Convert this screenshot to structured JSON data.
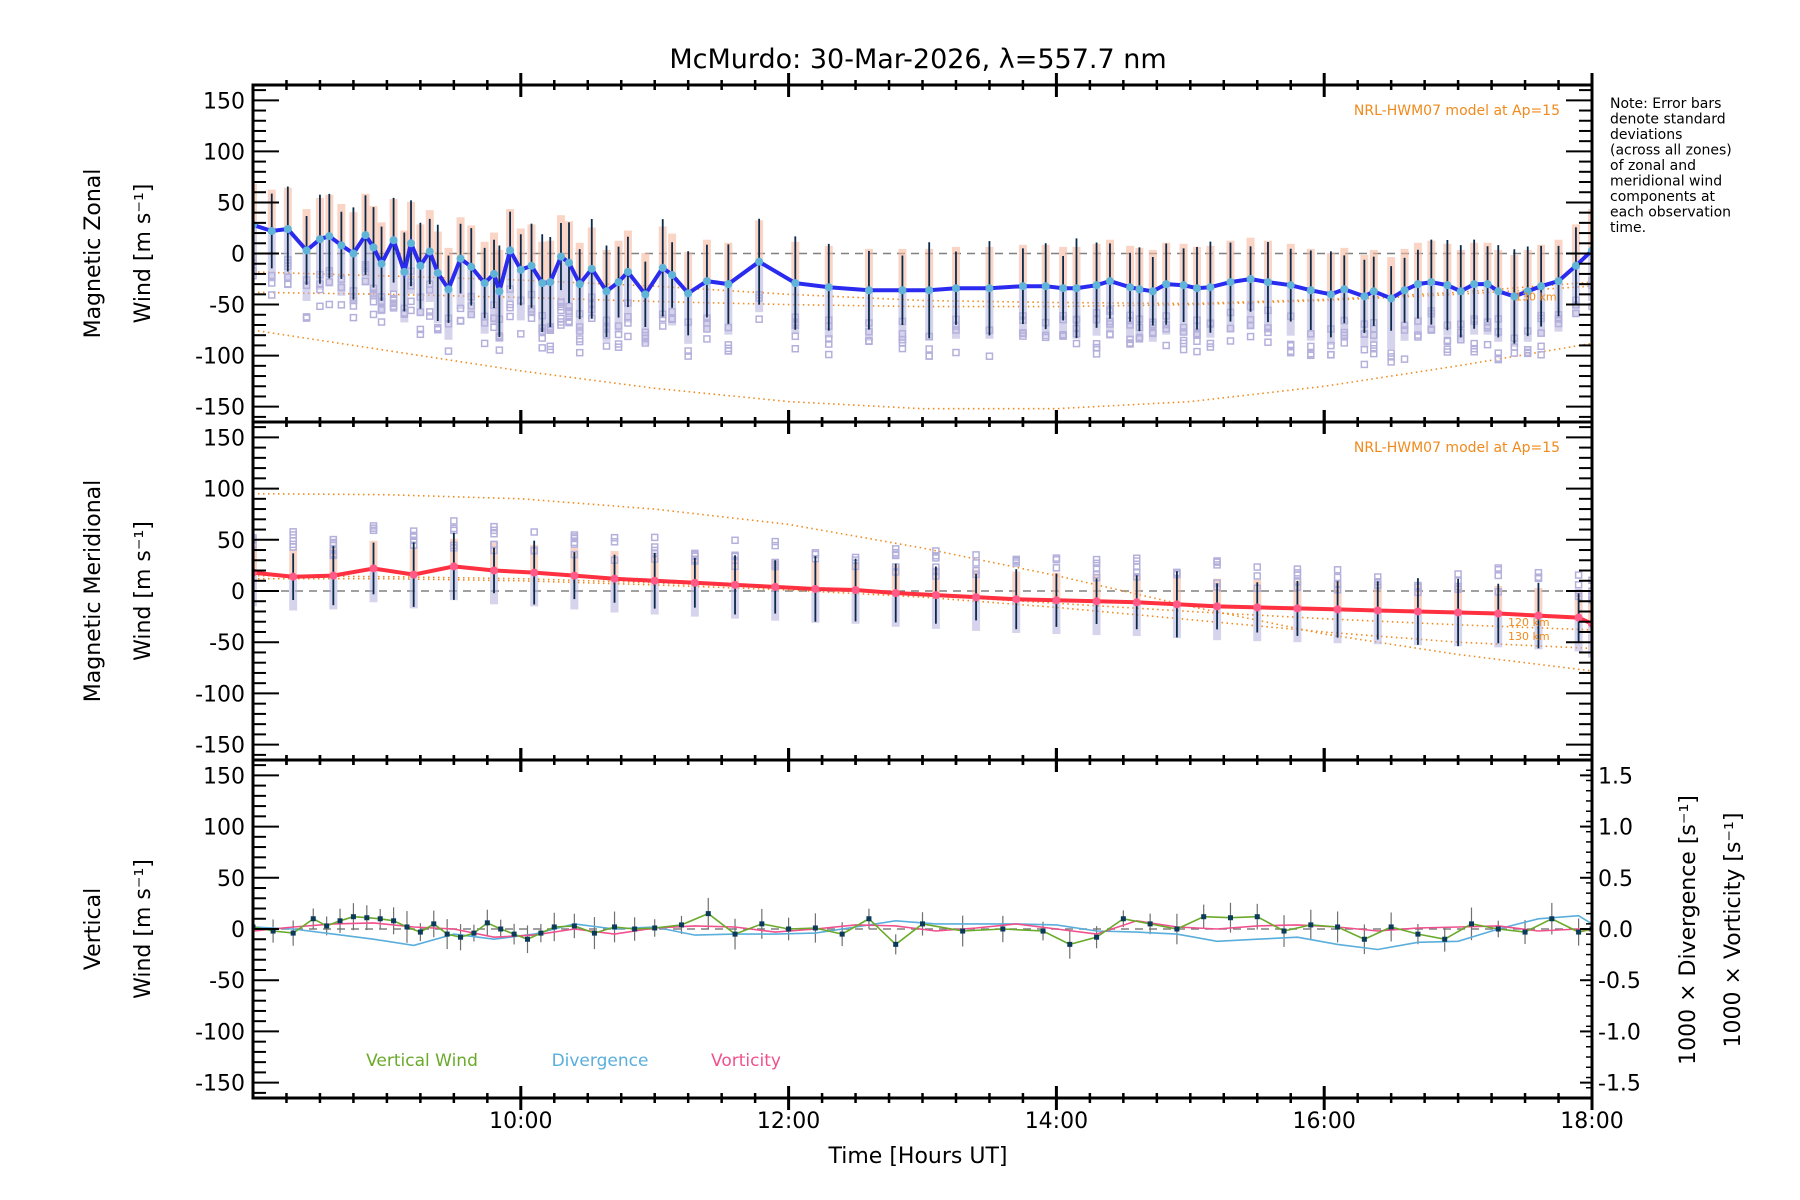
{
  "title": "McMurdo: 30-Mar-2026, λ=557.7 nm",
  "note_lines": [
    "Note: Error bars",
    "denote standard",
    "deviations",
    "(across all zones)",
    "of zonal and",
    "meridional wind",
    "components at",
    "each observation",
    "time."
  ],
  "colors": {
    "zonal_line": "#2b2bf0",
    "zonal_marker": "#5fb4d8",
    "meridional_line": "#ff3040",
    "meridional_marker": "#ff5a88",
    "model": "#f08a1c",
    "zone_scatter": "#b4b0dc",
    "zone_warm": "#f7b9a0",
    "errorbar": "#0b2a4a",
    "vertical": "#6aaa2a",
    "divergence": "#5aaedc",
    "vorticity": "#f0508c",
    "vertical_marker": "#0b3a5a",
    "zero_line": "#808080"
  },
  "chart_data": [
    {
      "type": "line",
      "panel": "zonal",
      "ylabel_line1": "Magnetic Zonal",
      "ylabel_line2": "Wind [m s⁻¹]",
      "ylim": [
        -165,
        165
      ],
      "yticks": [
        150,
        100,
        50,
        0,
        -50,
        -100,
        -150
      ],
      "xlim": [
        8.0,
        18.0
      ],
      "model_label": "NRL-HWM07 model at Ap=15",
      "model_km_label": "130 km",
      "series": [
        {
          "name": "Zonal wind",
          "x": [
            8.0,
            8.14,
            8.26,
            8.4,
            8.5,
            8.57,
            8.66,
            8.75,
            8.84,
            8.9,
            8.96,
            9.05,
            9.13,
            9.18,
            9.25,
            9.32,
            9.38,
            9.46,
            9.55,
            9.63,
            9.73,
            9.8,
            9.84,
            9.92,
            10.0,
            10.08,
            10.16,
            10.22,
            10.3,
            10.36,
            10.44,
            10.53,
            10.64,
            10.73,
            10.8,
            10.93,
            11.06,
            11.13,
            11.25,
            11.39,
            11.55,
            11.78,
            12.05,
            12.3,
            12.6,
            12.85,
            13.05,
            13.25,
            13.5,
            13.75,
            13.92,
            14.05,
            14.15,
            14.3,
            14.4,
            14.55,
            14.62,
            14.72,
            14.82,
            14.95,
            15.05,
            15.15,
            15.3,
            15.45,
            15.58,
            15.75,
            15.9,
            16.05,
            16.15,
            16.3,
            16.37,
            16.5,
            16.6,
            16.7,
            16.8,
            16.92,
            17.02,
            17.12,
            17.22,
            17.3,
            17.42,
            17.52,
            17.62,
            17.75,
            17.88,
            18.0
          ],
          "y": [
            28,
            22,
            24,
            3,
            14,
            17,
            8,
            0,
            18,
            6,
            -10,
            13,
            -18,
            10,
            -12,
            2,
            -19,
            -35,
            -5,
            -13,
            -29,
            -20,
            -37,
            3,
            -16,
            -12,
            -29,
            -28,
            -3,
            -9,
            -30,
            -15,
            -37,
            -28,
            -18,
            -40,
            -14,
            -21,
            -39,
            -27,
            -30,
            -8,
            -29,
            -33,
            -36,
            -36,
            -36,
            -34,
            -34,
            -32,
            -32,
            -34,
            -34,
            -31,
            -27,
            -33,
            -35,
            -37,
            -30,
            -31,
            -34,
            -33,
            -28,
            -25,
            -28,
            -31,
            -36,
            -40,
            -35,
            -42,
            -37,
            -44,
            -36,
            -30,
            -28,
            -31,
            -37,
            -30,
            -30,
            -37,
            -42,
            -37,
            -32,
            -27,
            -12,
            3
          ]
        },
        {
          "name": "Model 130 km (upper)",
          "x": [
            8.0,
            9.0,
            10.0,
            11.0,
            12.0,
            13.0,
            14.0,
            15.0,
            16.0,
            17.0,
            18.0
          ],
          "y": [
            -18,
            -22,
            -26,
            -32,
            -40,
            -46,
            -48,
            -49,
            -45,
            -38,
            -28
          ]
        },
        {
          "name": "Model (middle)",
          "x": [
            8.0,
            9.0,
            10.0,
            11.0,
            12.0,
            13.0,
            14.0,
            15.0,
            16.0,
            17.0,
            18.0
          ],
          "y": [
            -38,
            -40,
            -43,
            -47,
            -50,
            -52,
            -52,
            -50,
            -46,
            -40,
            -32
          ]
        },
        {
          "name": "Model (lower)",
          "x": [
            8.0,
            9.0,
            10.0,
            11.0,
            12.0,
            13.0,
            14.0,
            15.0,
            16.0,
            17.0,
            18.0
          ],
          "y": [
            -75,
            -95,
            -115,
            -132,
            -145,
            -152,
            -152,
            -145,
            -130,
            -110,
            -88
          ]
        }
      ]
    },
    {
      "type": "line",
      "panel": "meridional",
      "ylabel_line1": "Magnetic Meridional",
      "ylabel_line2": "Wind [m s⁻¹]",
      "ylim": [
        -165,
        165
      ],
      "yticks": [
        150,
        100,
        50,
        0,
        -50,
        -100,
        -150
      ],
      "xlim": [
        8.0,
        18.0
      ],
      "model_label": "NRL-HWM07 model at Ap=15",
      "model_km_labels": [
        "120 km",
        "130 km"
      ],
      "series": [
        {
          "name": "Meridional wind",
          "x": [
            8.0,
            8.3,
            8.6,
            8.9,
            9.2,
            9.5,
            9.8,
            10.1,
            10.4,
            10.7,
            11.0,
            11.3,
            11.6,
            11.9,
            12.2,
            12.5,
            12.8,
            13.1,
            13.4,
            13.7,
            14.0,
            14.3,
            14.6,
            14.9,
            15.2,
            15.5,
            15.8,
            16.1,
            16.4,
            16.7,
            17.0,
            17.3,
            17.6,
            17.9,
            18.0
          ],
          "y": [
            18,
            14,
            15,
            22,
            16,
            24,
            20,
            18,
            15,
            12,
            10,
            8,
            6,
            4,
            2,
            1,
            -2,
            -4,
            -6,
            -8,
            -9,
            -10,
            -11,
            -13,
            -15,
            -16,
            -17,
            -18,
            -19,
            -20,
            -21,
            -22,
            -24,
            -26,
            -32
          ]
        },
        {
          "name": "Model (upper)",
          "x": [
            8.0,
            9.0,
            10.0,
            11.0,
            12.0,
            13.0,
            14.0,
            15.0,
            16.0,
            17.0,
            18.0
          ],
          "y": [
            95,
            94,
            90,
            80,
            65,
            42,
            15,
            -15,
            -42,
            -62,
            -78
          ]
        },
        {
          "name": "Model 120 km",
          "x": [
            8.0,
            9.0,
            10.0,
            11.0,
            12.0,
            13.0,
            14.0,
            15.0,
            16.0,
            17.0,
            18.0
          ],
          "y": [
            15,
            14,
            12,
            8,
            3,
            -4,
            -12,
            -20,
            -27,
            -33,
            -38
          ]
        },
        {
          "name": "Model 130 km",
          "x": [
            8.0,
            9.0,
            10.0,
            11.0,
            12.0,
            13.0,
            14.0,
            15.0,
            16.0,
            17.0,
            18.0
          ],
          "y": [
            12,
            12,
            10,
            6,
            1,
            -6,
            -16,
            -28,
            -40,
            -50,
            -56
          ]
        }
      ]
    },
    {
      "type": "line",
      "panel": "vertical",
      "ylabel_line1": "Vertical",
      "ylabel_line2": "Wind [m s⁻¹]",
      "y2label_divergence": "1000 × Divergence [s⁻¹]",
      "y2label_vorticity": "1000 × Vorticity [s⁻¹]",
      "ylim": [
        -165,
        165
      ],
      "yticks": [
        150,
        100,
        50,
        0,
        -50,
        -100,
        -150
      ],
      "y2lim": [
        -1.65,
        1.65
      ],
      "y2ticks": [
        1.5,
        1.0,
        0.5,
        0.0,
        -0.5,
        -1.0,
        -1.5
      ],
      "xlim": [
        8.0,
        18.0
      ],
      "xticks": [
        "10:00",
        "12:00",
        "14:00",
        "16:00",
        "18:00"
      ],
      "xtick_values": [
        10,
        12,
        14,
        16,
        18
      ],
      "xlabel": "Time [Hours UT]",
      "legend": [
        "Vertical Wind",
        "Divergence",
        "Vorticity"
      ],
      "series": [
        {
          "name": "Vertical Wind",
          "x": [
            8.0,
            8.15,
            8.3,
            8.45,
            8.55,
            8.65,
            8.75,
            8.85,
            8.95,
            9.05,
            9.15,
            9.25,
            9.35,
            9.45,
            9.55,
            9.65,
            9.75,
            9.85,
            9.95,
            10.05,
            10.15,
            10.25,
            10.4,
            10.55,
            10.7,
            10.85,
            11.0,
            11.2,
            11.4,
            11.6,
            11.8,
            12.0,
            12.2,
            12.4,
            12.6,
            12.8,
            13.0,
            13.3,
            13.6,
            13.9,
            14.1,
            14.3,
            14.5,
            14.7,
            14.9,
            15.1,
            15.3,
            15.5,
            15.7,
            15.9,
            16.1,
            16.3,
            16.5,
            16.7,
            16.9,
            17.1,
            17.3,
            17.5,
            17.7,
            17.9,
            18.0
          ],
          "y": [
            2,
            -2,
            -4,
            10,
            3,
            8,
            12,
            11,
            10,
            8,
            2,
            -3,
            5,
            -5,
            -8,
            -4,
            6,
            0,
            -5,
            -10,
            -4,
            2,
            3,
            -4,
            2,
            0,
            1,
            4,
            15,
            -5,
            5,
            0,
            1,
            -5,
            10,
            -15,
            5,
            -2,
            0,
            -2,
            -15,
            -8,
            10,
            5,
            0,
            12,
            11,
            12,
            -2,
            4,
            2,
            -10,
            2,
            -5,
            -10,
            5,
            0,
            -3,
            10,
            -3,
            0
          ]
        },
        {
          "name": "Divergence",
          "x": [
            8.0,
            8.3,
            8.6,
            8.9,
            9.2,
            9.5,
            9.8,
            10.1,
            10.4,
            10.7,
            11.0,
            11.3,
            11.6,
            11.9,
            12.2,
            12.5,
            12.8,
            13.1,
            13.4,
            13.7,
            14.0,
            14.3,
            14.6,
            14.9,
            15.2,
            15.5,
            15.8,
            16.1,
            16.4,
            16.7,
            17.0,
            17.3,
            17.6,
            17.9,
            18.0
          ],
          "y": [
            0.02,
            0.0,
            -0.05,
            -0.1,
            -0.16,
            -0.05,
            -0.1,
            -0.05,
            0.05,
            0.0,
            0.02,
            -0.06,
            -0.05,
            -0.05,
            -0.04,
            0.02,
            0.08,
            0.05,
            0.05,
            0.05,
            0.04,
            -0.02,
            -0.03,
            -0.05,
            -0.12,
            -0.1,
            -0.08,
            -0.15,
            -0.2,
            -0.13,
            -0.12,
            0.0,
            0.1,
            0.13,
            0.05
          ]
        },
        {
          "name": "Vorticity",
          "x": [
            8.0,
            8.3,
            8.6,
            8.9,
            9.2,
            9.5,
            9.8,
            10.1,
            10.4,
            10.7,
            11.0,
            11.3,
            11.6,
            11.9,
            12.2,
            12.5,
            12.8,
            13.1,
            13.4,
            13.7,
            14.0,
            14.3,
            14.6,
            14.9,
            15.2,
            15.5,
            15.8,
            16.1,
            16.4,
            16.7,
            17.0,
            17.3,
            17.6,
            17.9,
            18.0
          ],
          "y": [
            -0.02,
            0.02,
            0.05,
            0.06,
            0.02,
            0.0,
            -0.08,
            -0.06,
            0.0,
            -0.05,
            0.01,
            0.03,
            0.02,
            -0.03,
            0.0,
            0.04,
            0.03,
            -0.02,
            0.01,
            0.05,
            0.0,
            -0.05,
            0.08,
            0.02,
            0.0,
            0.03,
            0.04,
            0.02,
            -0.02,
            0.01,
            0.02,
            0.03,
            -0.02,
            0.0,
            -0.02
          ]
        }
      ]
    }
  ]
}
